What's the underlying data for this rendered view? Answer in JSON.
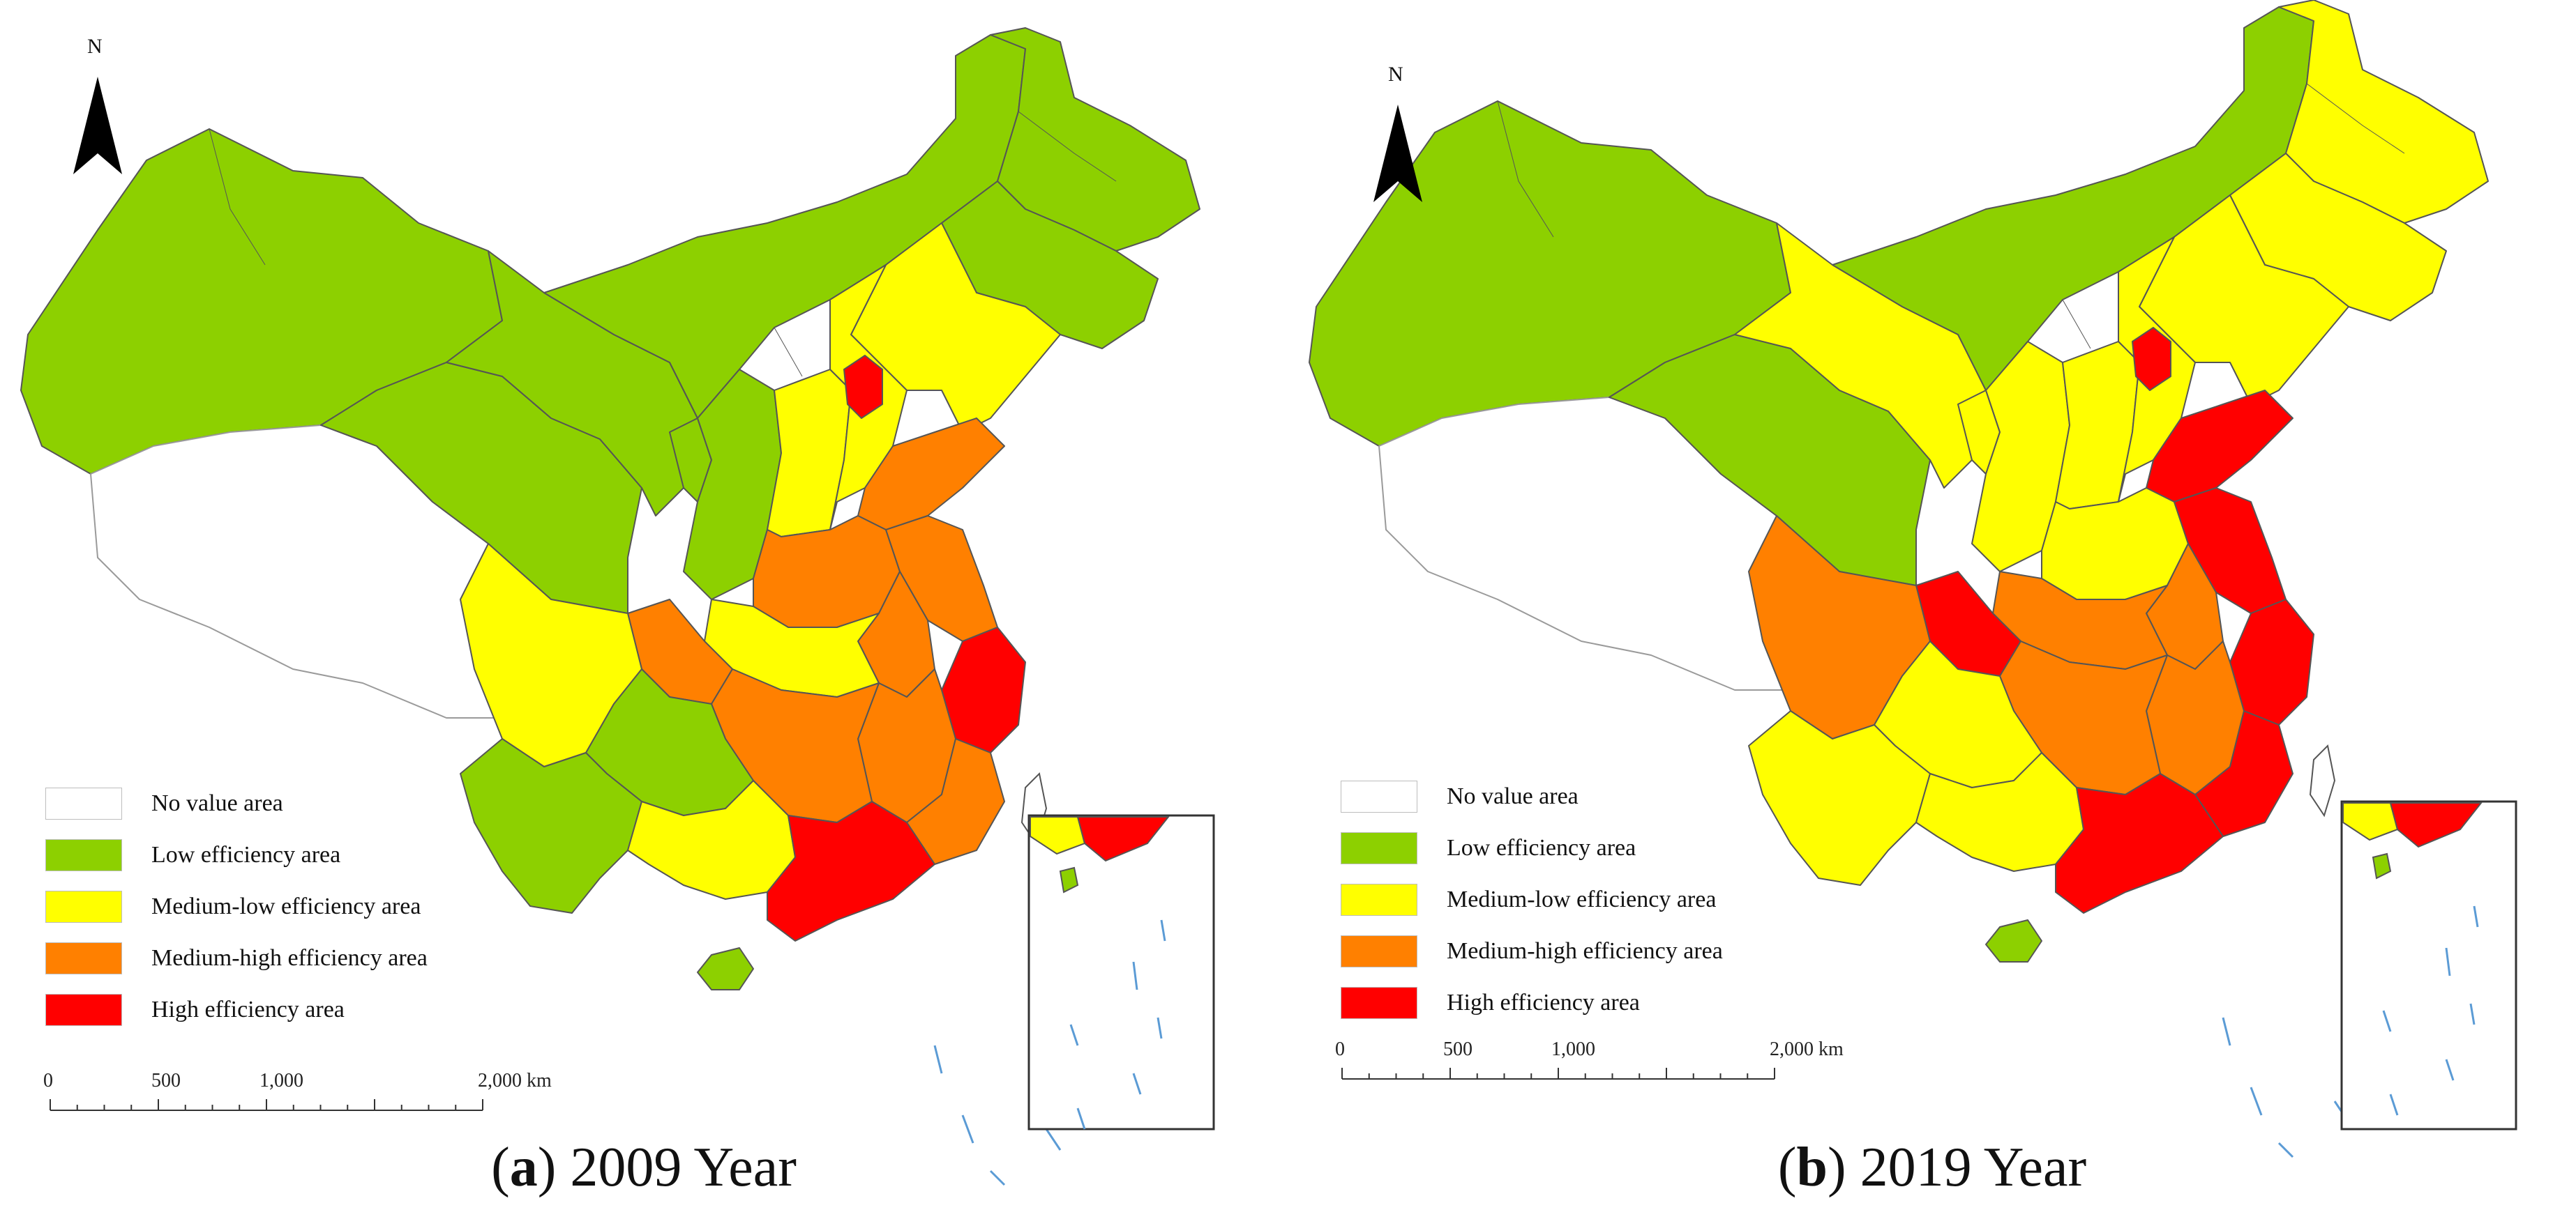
{
  "colors": {
    "no_value": "#ffffff",
    "low": "#8dd000",
    "medium_low": "#ffff00",
    "medium_high": "#ff8000",
    "high": "#ff0000",
    "border": "#555555",
    "sea_dash": "#5b9bd5"
  },
  "panels": [
    {
      "caption_letter": "a",
      "caption_rest": " 2009 Year",
      "north_label": "N",
      "legend": [
        {
          "label": "No value area",
          "class": "no_value"
        },
        {
          "label": "Low efficiency area",
          "class": "low"
        },
        {
          "label": "Medium-low efficiency area",
          "class": "medium_low"
        },
        {
          "label": "Medium-high efficiency area",
          "class": "medium_high"
        },
        {
          "label": "High efficiency area",
          "class": "high"
        }
      ],
      "scale_labels": [
        "0",
        "500",
        "1,000",
        "2,000 km"
      ],
      "regions": {
        "northeast": "low",
        "heilongjiang": "low",
        "inner_mongolia": "low",
        "xinjiang": "low",
        "tibet": "no_value",
        "qinghai": "low",
        "gansu": "low",
        "ningxia": "low",
        "shaanxi": "low",
        "sichuan": "medium_low",
        "yunnan": "low",
        "guizhou": "low",
        "guangxi": "medium_low",
        "chongqing": "medium_high",
        "hunan": "medium_high",
        "hubei": "medium_low",
        "henan": "medium_high",
        "shanxi": "medium_low",
        "hebei": "medium_low",
        "beijing": "high",
        "liaoning": "medium_low",
        "shandong": "medium_high",
        "jiangsu": "medium_high",
        "anhui": "medium_high",
        "zhejiang": "high",
        "jiangxi": "medium_high",
        "fujian": "medium_high",
        "guangdong": "high",
        "hainan": "low"
      }
    },
    {
      "caption_letter": "b",
      "caption_rest": " 2019 Year",
      "north_label": "N",
      "legend": [
        {
          "label": "No value area",
          "class": "no_value"
        },
        {
          "label": "Low efficiency area",
          "class": "low"
        },
        {
          "label": "Medium-low efficiency area",
          "class": "medium_low"
        },
        {
          "label": "Medium-high efficiency area",
          "class": "medium_high"
        },
        {
          "label": "High efficiency area",
          "class": "high"
        }
      ],
      "scale_labels": [
        "0",
        "500",
        "1,000",
        "2,000 km"
      ],
      "regions": {
        "northeast": "medium_low",
        "heilongjiang": "medium_low",
        "inner_mongolia": "low",
        "xinjiang": "low",
        "tibet": "no_value",
        "qinghai": "low",
        "gansu": "medium_low",
        "ningxia": "medium_low",
        "shaanxi": "medium_low",
        "sichuan": "medium_high",
        "yunnan": "medium_low",
        "guizhou": "medium_low",
        "guangxi": "medium_low",
        "chongqing": "high",
        "hunan": "medium_high",
        "hubei": "medium_high",
        "henan": "medium_low",
        "shanxi": "medium_low",
        "hebei": "medium_low",
        "beijing": "high",
        "liaoning": "medium_low",
        "shandong": "high",
        "jiangsu": "high",
        "anhui": "medium_high",
        "zhejiang": "high",
        "jiangxi": "medium_high",
        "fujian": "high",
        "guangdong": "high",
        "hainan": "low"
      }
    }
  ]
}
